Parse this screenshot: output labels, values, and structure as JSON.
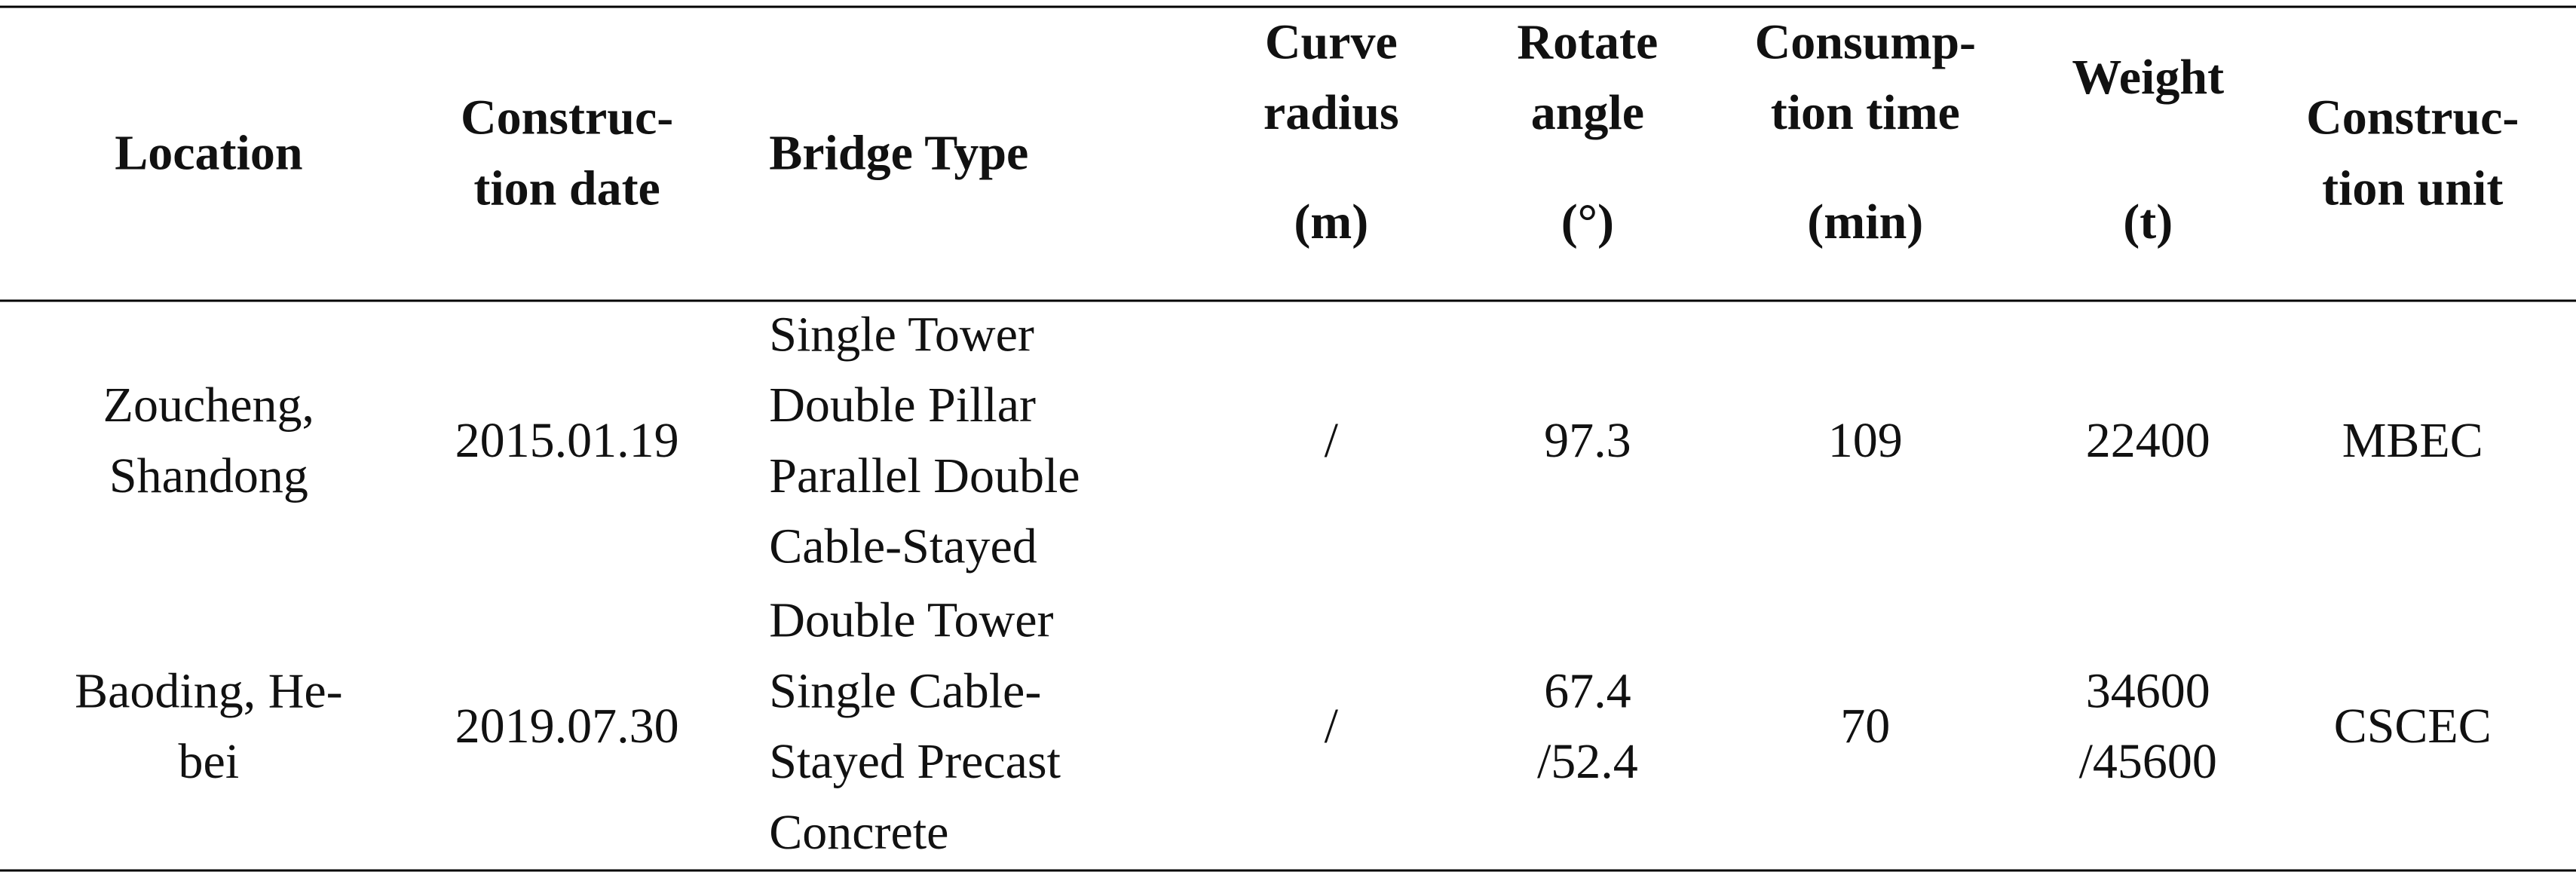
{
  "table": {
    "header": [
      {
        "lines": [
          "Location"
        ]
      },
      {
        "lines": [
          "Construc-",
          "tion date"
        ]
      },
      {
        "lines": [
          "Bridge Type"
        ]
      },
      {
        "lines": [
          "Curve",
          "radius"
        ],
        "unit": "(m)"
      },
      {
        "lines": [
          "Rotate",
          "angle"
        ],
        "unit": "(°)"
      },
      {
        "lines": [
          "Consump-",
          "tion time"
        ],
        "unit": "(min)"
      },
      {
        "lines": [
          "Weight"
        ],
        "unit": "(t)"
      },
      {
        "lines": [
          "Construc-",
          "tion unit"
        ]
      }
    ],
    "rows": [
      [
        [
          "Zoucheng,",
          "Shandong"
        ],
        [
          "2015.01.19"
        ],
        [
          "Single Tower",
          "Double Pillar",
          "Parallel Double",
          "Cable-Stayed"
        ],
        [
          "/"
        ],
        [
          "97.3"
        ],
        [
          "109"
        ],
        [
          "22400"
        ],
        [
          "MBEC"
        ]
      ],
      [
        [
          "Baoding, He-",
          "bei"
        ],
        [
          "2019.07.30"
        ],
        [
          "Double Tower",
          "Single Cable-",
          "Stayed Precast",
          "Concrete"
        ],
        [
          "/"
        ],
        [
          "67.4",
          "/52.4"
        ],
        [
          "70"
        ],
        [
          "34600",
          "/45600"
        ],
        [
          "CSCEC"
        ]
      ]
    ]
  }
}
